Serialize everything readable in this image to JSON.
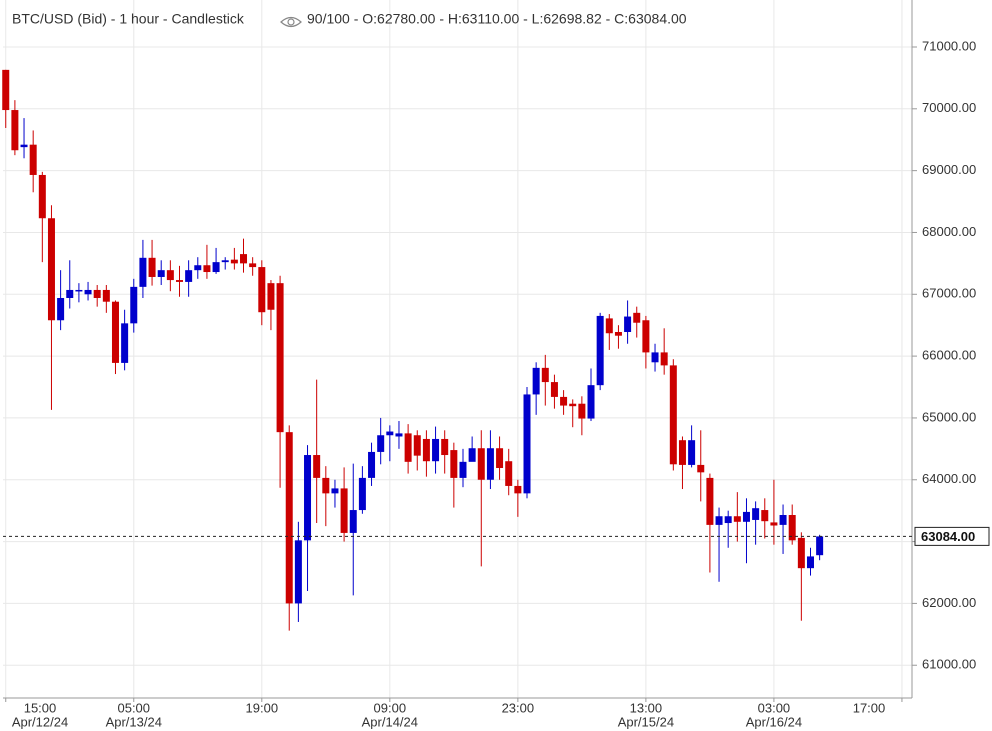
{
  "chart_data": {
    "type": "candlestick",
    "title": "BTC/USD (Bid) - 1 hour - Candlestick",
    "info": "90/100 - O:62780.00 - H:63110.00 - L:62698.82 - C:63084.00",
    "up_color": "#0000cc",
    "down_color": "#cc0000",
    "grid": true,
    "open": [
      70630,
      69980,
      69380,
      69420,
      68930,
      68230,
      66580,
      66940,
      67050,
      67000,
      67070,
      67070,
      66880,
      65890,
      66530,
      67120,
      67590,
      67280,
      67390,
      67230,
      67200,
      67390,
      67470,
      67360,
      67520,
      67560,
      67650,
      67500,
      67440,
      67180,
      67180,
      64770,
      62000,
      63020,
      64400,
      64030,
      63780,
      63860,
      63140,
      63510,
      64030,
      64450,
      64720,
      64700,
      64750,
      64720,
      64660,
      64300,
      64660,
      64480,
      64030,
      64290,
      64510,
      64000,
      64510,
      64300,
      63900,
      63780,
      65380,
      65810,
      65580,
      65340,
      65230,
      65230,
      64990,
      65530,
      66610,
      66390,
      66390,
      66700,
      66580,
      65900,
      66060,
      65850,
      64640,
      64240,
      64240,
      64030,
      63270,
      63300,
      63410,
      63320,
      63350,
      63510,
      63310,
      63270,
      63430,
      63060,
      62570,
      62780
    ],
    "high": [
      70630,
      70140,
      69850,
      69650,
      68980,
      68440,
      67390,
      67550,
      67180,
      67200,
      67150,
      67150,
      66900,
      66750,
      67250,
      67880,
      67880,
      67550,
      67550,
      67460,
      67550,
      67600,
      67800,
      67750,
      67600,
      67750,
      67900,
      67600,
      67550,
      67230,
      67300,
      64880,
      63320,
      64560,
      65620,
      64220,
      64000,
      64200,
      64260,
      64220,
      64600,
      65000,
      64880,
      64950,
      64900,
      64800,
      64800,
      64860,
      64800,
      64600,
      64500,
      64700,
      64800,
      64800,
      64700,
      64500,
      64000,
      65500,
      65900,
      66020,
      65700,
      65450,
      65300,
      65350,
      65800,
      66700,
      66680,
      66500,
      66900,
      66800,
      66650,
      66200,
      66450,
      65950,
      64700,
      64880,
      64800,
      64100,
      63550,
      63500,
      63800,
      63700,
      63650,
      63700,
      64000,
      63600,
      63600,
      63150,
      62900,
      63110
    ],
    "low": [
      69690,
      69250,
      69200,
      68650,
      67520,
      65130,
      66420,
      66770,
      66870,
      66900,
      66800,
      66700,
      65710,
      65770,
      66380,
      66940,
      67140,
      67150,
      67050,
      66960,
      66960,
      67250,
      67250,
      67330,
      67400,
      67400,
      67350,
      67300,
      66500,
      66420,
      63870,
      61560,
      61700,
      62200,
      63300,
      63250,
      63550,
      63000,
      62130,
      63450,
      63900,
      64250,
      64300,
      64500,
      64100,
      64150,
      64050,
      64100,
      64100,
      63550,
      63880,
      64300,
      62600,
      63850,
      64000,
      63750,
      63400,
      63700,
      65050,
      65200,
      65150,
      65050,
      64850,
      64720,
      64950,
      65450,
      66100,
      66120,
      66200,
      66300,
      65800,
      65750,
      65700,
      64150,
      63850,
      64200,
      63650,
      62500,
      62350,
      62900,
      63000,
      62650,
      62950,
      63050,
      62950,
      62800,
      62950,
      61720,
      62450,
      62698.82
    ],
    "close": [
      69980,
      69330,
      69420,
      68930,
      68230,
      66580,
      66940,
      67070,
      67070,
      67070,
      66940,
      66880,
      65890,
      66530,
      67120,
      67590,
      67280,
      67390,
      67230,
      67200,
      67390,
      67470,
      67360,
      67520,
      67550,
      67500,
      67500,
      67440,
      66710,
      66750,
      64770,
      62000,
      63020,
      64400,
      64030,
      63780,
      63860,
      63140,
      63510,
      64030,
      64450,
      64720,
      64780,
      64750,
      64290,
      64390,
      64300,
      64660,
      64400,
      64030,
      64290,
      64510,
      64000,
      64510,
      64190,
      63900,
      63780,
      65380,
      65810,
      65580,
      65340,
      65200,
      65190,
      64990,
      65530,
      66650,
      66370,
      66330,
      66640,
      66540,
      66060,
      66060,
      65850,
      64250,
      64240,
      64640,
      64120,
      63270,
      63410,
      63410,
      63320,
      63480,
      63540,
      63330,
      63260,
      63430,
      63020,
      62570,
      62760,
      63084
    ],
    "xlim": [
      -0.3,
      99.1
    ],
    "xticks": [
      {
        "value": 0,
        "label": "15:00",
        "date": "Apr/12/24"
      },
      {
        "value": 14,
        "label": "05:00",
        "date": "Apr/13/24"
      },
      {
        "value": 28,
        "label": "19:00"
      },
      {
        "value": 42,
        "label": "09:00",
        "date": "Apr/14/24"
      },
      {
        "value": 56,
        "label": "23:00"
      },
      {
        "value": 70,
        "label": "13:00",
        "date": "Apr/15/24"
      },
      {
        "value": 84,
        "label": "03:00",
        "date": "Apr/16/24"
      },
      {
        "value": 98,
        "label": "17:00"
      }
    ],
    "ylim": [
      60470,
      71760
    ],
    "yticks": [
      {
        "value": 61000,
        "label": "61000.00"
      },
      {
        "value": 62000,
        "label": "62000.00"
      },
      {
        "value": 63000,
        "label": "63000.00"
      },
      {
        "value": 64000,
        "label": "64000.00"
      },
      {
        "value": 65000,
        "label": "65000.00"
      },
      {
        "value": 66000,
        "label": "66000.00"
      },
      {
        "value": 67000,
        "label": "67000.00"
      },
      {
        "value": 68000,
        "label": "68000.00"
      },
      {
        "value": 69000,
        "label": "69000.00"
      },
      {
        "value": 70000,
        "label": "70000.00"
      },
      {
        "value": 71000,
        "label": "71000.00"
      }
    ],
    "last_price": {
      "value": 63084,
      "label": "63084.00"
    }
  }
}
